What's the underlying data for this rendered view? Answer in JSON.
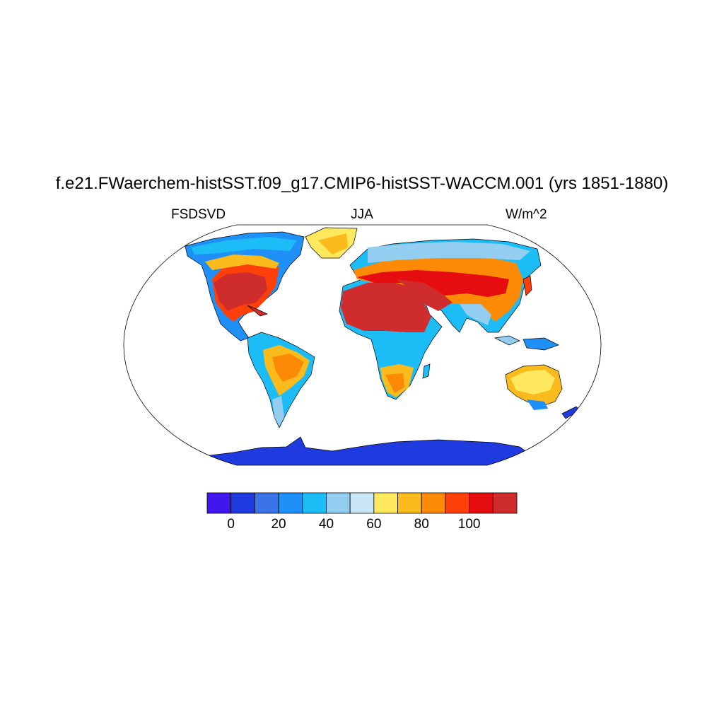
{
  "title": "f.e21.FWaerchem-histSST.f09_g17.CMIP6-histSST-WACCM.001 (yrs 1851-1880)",
  "left_label": "FSDSVD",
  "center_label": "JJA",
  "right_label": "W/m^2",
  "colorbar": {
    "colors": [
      "#4117f0",
      "#1f3be0",
      "#3b74e8",
      "#1e90f8",
      "#1cbdf7",
      "#93cdf0",
      "#c9e6f7",
      "#fde85e",
      "#fbbb1c",
      "#fc8a07",
      "#fd4009",
      "#e50d10",
      "#cf2c2d"
    ],
    "tick_labels": [
      "0",
      "20",
      "40",
      "60",
      "80",
      "100"
    ],
    "tick_values": [
      0,
      20,
      40,
      60,
      80,
      100
    ],
    "levels": [
      0,
      10,
      20,
      30,
      40,
      50,
      60,
      70,
      80,
      90,
      100,
      110
    ]
  }
}
